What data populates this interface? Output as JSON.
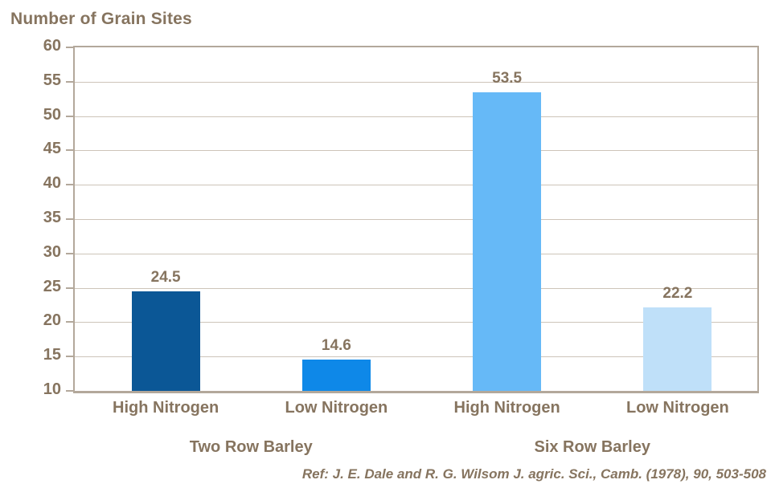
{
  "colors": {
    "background": "#ffffff",
    "text": "#86745f",
    "axis_border": "#b3a89b",
    "gridline": "#cdc4b9"
  },
  "chart_data": {
    "type": "bar",
    "title": "Number of Grain Sites",
    "xlabel": "",
    "ylabel": "Number of Grain Sites",
    "categories": [
      "High Nitrogen",
      "Low Nitrogen",
      "High Nitrogen",
      "Low Nitrogen"
    ],
    "groups": [
      {
        "label": "Two Row Barley",
        "span": [
          0,
          1
        ]
      },
      {
        "label": "Six Row Barley",
        "span": [
          2,
          3
        ]
      }
    ],
    "values": [
      24.5,
      14.6,
      53.5,
      22.2
    ],
    "value_labels": [
      "24.5",
      "14.6",
      "53.5",
      "22.2"
    ],
    "bar_colors": [
      "#0b5796",
      "#0e88e8",
      "#66b9f7",
      "#bfe0f9"
    ],
    "ylim": [
      10,
      60
    ],
    "ytick_step": 5,
    "yticks": [
      60,
      55,
      50,
      45,
      40,
      35,
      30,
      25,
      20,
      15,
      10
    ],
    "grid": true,
    "legend_position": "none"
  },
  "footer": {
    "reference": "Ref: J. E. Dale and R. G. Wilsom J. agric. Sci., Camb. (1978), 90, 503-508"
  }
}
